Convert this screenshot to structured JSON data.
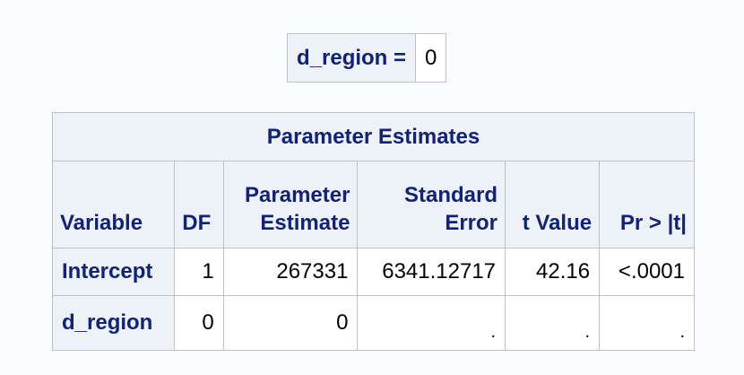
{
  "by_group": {
    "label": "d_region =",
    "value": "0"
  },
  "parameter_estimates": {
    "title": "Parameter Estimates",
    "columns": {
      "variable": "Variable",
      "df": "DF",
      "estimate_line1": "Parameter",
      "estimate_line2": "Estimate",
      "stderr_line1": "Standard",
      "stderr_line2": "Error",
      "tvalue": "t Value",
      "pvalue": "Pr > |t|"
    },
    "rows": [
      {
        "variable": "Intercept",
        "df": "1",
        "estimate": "267331",
        "stderr": "6341.12717",
        "tvalue": "42.16",
        "pvalue": "<.0001"
      },
      {
        "variable": "d_region",
        "df": "0",
        "estimate": "0",
        "stderr": ".",
        "tvalue": ".",
        "pvalue": "."
      }
    ]
  }
}
